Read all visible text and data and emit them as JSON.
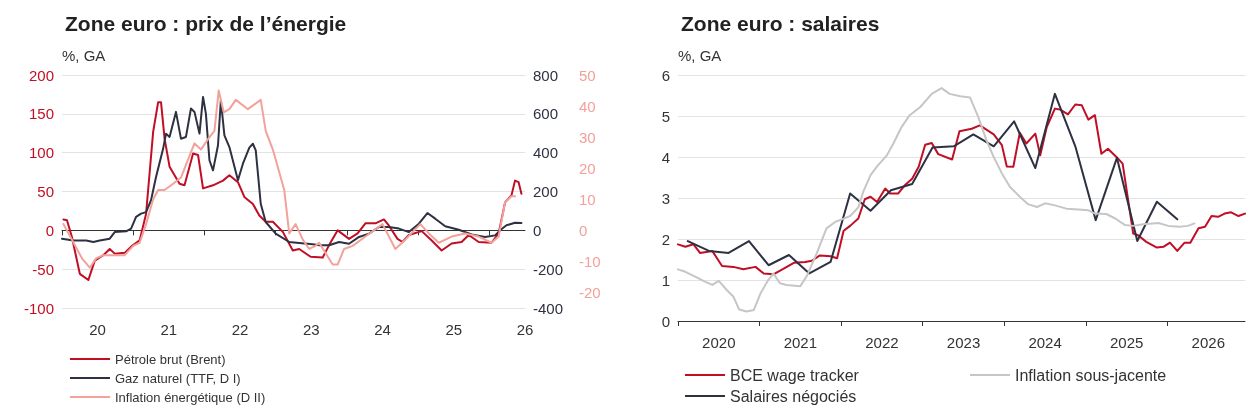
{
  "chart_data": [
    {
      "type": "line",
      "title": "Zone euro : prix de l’énergie",
      "ylabel": "%, GA",
      "legend": "bottom left",
      "grid": "y",
      "xlim": [
        20,
        26.5
      ],
      "xticks": [
        {
          "value": 20,
          "label": null
        },
        {
          "value": 20.5,
          "label": "20"
        },
        {
          "value": 21,
          "label": null
        },
        {
          "value": 21.5,
          "label": "21"
        },
        {
          "value": 22,
          "label": null
        },
        {
          "value": 22.5,
          "label": "22"
        },
        {
          "value": 23,
          "label": null
        },
        {
          "value": 23.5,
          "label": "23"
        },
        {
          "value": 24,
          "label": null
        },
        {
          "value": 24.5,
          "label": "24"
        },
        {
          "value": 25,
          "label": null
        },
        {
          "value": 25.5,
          "label": "25"
        },
        {
          "value": 26,
          "label": null
        },
        {
          "value": 26.5,
          "label": "26"
        }
      ],
      "ylim": [
        -100,
        200
      ],
      "yticks": [
        -100,
        -50,
        0,
        50,
        100,
        150,
        200
      ],
      "y2lim": [
        -400,
        800
      ],
      "y2ticks": [
        -400,
        -200,
        0,
        200,
        400,
        600,
        800
      ],
      "y3lim": [
        -25,
        50
      ],
      "y3ticks": [
        -20,
        -10,
        0,
        10,
        20,
        30,
        40,
        50
      ],
      "series": [
        {
          "name": "Pétrole brut (Brent)",
          "color": "#c00f25",
          "axis": "y",
          "x": [
            20.02,
            20.07,
            20.14,
            20.25,
            20.37,
            20.46,
            20.58,
            20.67,
            20.74,
            20.88,
            20.97,
            21.09,
            21.18,
            21.28,
            21.35,
            21.39,
            21.44,
            21.51,
            21.65,
            21.72,
            21.84,
            21.91,
            21.98,
            22.12,
            22.26,
            22.35,
            22.47,
            22.56,
            22.68,
            22.77,
            22.86,
            22.96,
            23.1,
            23.24,
            23.33,
            23.49,
            23.66,
            23.75,
            23.87,
            24.03,
            24.15,
            24.26,
            24.4,
            24.52,
            24.59,
            24.71,
            24.78,
            24.87,
            25.05,
            25.19,
            25.33,
            25.47,
            25.61,
            25.71,
            25.85,
            26.03,
            26.13,
            26.22,
            26.31,
            26.36,
            26.41,
            26.45
          ],
          "values": [
            14,
            13,
            -9,
            -56,
            -64,
            -39,
            -32,
            -24,
            -30,
            -29,
            -21,
            -13,
            21,
            127,
            165,
            165,
            118,
            82,
            60,
            58,
            99,
            97,
            54,
            58,
            64,
            71,
            62,
            43,
            34,
            19,
            11,
            11,
            -2,
            -26,
            -24,
            -34,
            -35,
            -19,
            0,
            -11,
            -4,
            9,
            9,
            14,
            6,
            -11,
            -15,
            -6,
            -1,
            -13,
            -26,
            -17,
            -15,
            -6,
            -15,
            -16,
            -4,
            36,
            45,
            64,
            62,
            47
          ]
        },
        {
          "name": "Gaz naturel (TTF, D I)",
          "color": "#2d3142",
          "axis": "y2",
          "x": [
            20,
            20.16,
            20.34,
            20.44,
            20.53,
            20.67,
            20.74,
            20.9,
            20.97,
            21.04,
            21.11,
            21.18,
            21.25,
            21.32,
            21.42,
            21.46,
            21.51,
            21.6,
            21.67,
            21.74,
            21.81,
            21.86,
            21.93,
            21.98,
            22.02,
            22.07,
            22.12,
            22.19,
            22.23,
            22.28,
            22.35,
            22.47,
            22.54,
            22.63,
            22.68,
            22.72,
            22.79,
            22.86,
            23,
            23.19,
            23.33,
            23.52,
            23.61,
            23.75,
            23.89,
            24.03,
            24.17,
            24.31,
            24.45,
            24.59,
            24.73,
            24.87,
            25.01,
            25.13,
            25.24,
            25.38,
            25.57,
            25.75,
            25.94,
            26.08,
            26.15,
            26.24,
            26.36,
            26.45
          ],
          "values": [
            -43,
            -52,
            -52,
            -60,
            -52,
            -43,
            -9,
            -5,
            9,
            69,
            86,
            94,
            155,
            275,
            421,
            498,
            481,
            610,
            472,
            481,
            627,
            610,
            498,
            687,
            601,
            361,
            309,
            438,
            670,
            489,
            429,
            258,
            343,
            426,
            446,
            412,
            137,
            43,
            -17,
            -60,
            -65,
            -72,
            -77,
            -77,
            -60,
            -69,
            -34,
            -17,
            17,
            17,
            9,
            -9,
            34,
            89,
            60,
            21,
            3,
            -21,
            -34,
            -26,
            0,
            26,
            39,
            38
          ]
        },
        {
          "name": "Inflation énergétique (D II)",
          "color": "#f2a19b",
          "axis": "y3",
          "x": [
            20.02,
            20.14,
            20.28,
            20.39,
            20.48,
            20.58,
            20.72,
            20.88,
            21,
            21.09,
            21.18,
            21.28,
            21.35,
            21.44,
            21.56,
            21.67,
            21.79,
            21.86,
            21.95,
            22.07,
            22.14,
            22.2,
            22.27,
            22.35,
            22.44,
            22.61,
            22.79,
            22.86,
            22.96,
            23.12,
            23.19,
            23.28,
            23.38,
            23.47,
            23.56,
            23.61,
            23.8,
            23.87,
            23.96,
            24.08,
            24.26,
            24.5,
            24.68,
            24.82,
            25.03,
            25.15,
            25.29,
            25.47,
            25.66,
            25.85,
            26.03,
            26.13,
            26.22,
            26.31,
            26.36
          ],
          "values": [
            2,
            -3,
            -9,
            -12,
            -9,
            -8,
            -8,
            -8,
            -5,
            -4,
            2,
            10,
            13,
            13,
            15,
            17,
            24,
            28,
            26,
            30,
            32,
            45,
            38,
            39,
            42,
            39,
            42,
            32,
            26,
            13,
            -1,
            2,
            -3,
            -6,
            -5,
            -4,
            -11,
            -11,
            -6,
            -5,
            -2,
            2,
            -6,
            -3,
            2,
            -1,
            -4,
            -2,
            -1,
            -2,
            -4,
            -2,
            9,
            11,
            11
          ]
        }
      ]
    },
    {
      "type": "line",
      "title": "Zone euro : salaires",
      "ylabel": "%, GA",
      "legend": "bottom",
      "grid": "y",
      "xlim": [
        2020,
        2026.95
      ],
      "xticks": [
        {
          "value": 2020,
          "label": null
        },
        {
          "value": 2020.5,
          "label": "2020"
        },
        {
          "value": 2021,
          "label": null
        },
        {
          "value": 2021.5,
          "label": "2021"
        },
        {
          "value": 2022,
          "label": null
        },
        {
          "value": 2022.5,
          "label": "2022"
        },
        {
          "value": 2023,
          "label": null
        },
        {
          "value": 2023.5,
          "label": "2023"
        },
        {
          "value": 2024,
          "label": null
        },
        {
          "value": 2024.5,
          "label": "2024"
        },
        {
          "value": 2025,
          "label": null
        },
        {
          "value": 2025.5,
          "label": "2025"
        },
        {
          "value": 2026,
          "label": null
        },
        {
          "value": 2026.5,
          "label": "2026"
        }
      ],
      "ylim": [
        0,
        6
      ],
      "yticks": [
        0,
        1,
        2,
        3,
        4,
        5,
        6
      ],
      "series": [
        {
          "name": "BCE wage tracker",
          "color": "#c00f25",
          "x": [
            2020,
            2020.09,
            2020.19,
            2020.27,
            2020.42,
            2020.54,
            2020.68,
            2020.8,
            2020.95,
            2021.05,
            2021.17,
            2021.29,
            2021.42,
            2021.56,
            2021.64,
            2021.74,
            2021.87,
            2021.95,
            2022.03,
            2022.11,
            2022.21,
            2022.29,
            2022.36,
            2022.44,
            2022.54,
            2022.6,
            2022.7,
            2022.78,
            2022.87,
            2022.95,
            2023.03,
            2023.11,
            2023.19,
            2023.36,
            2023.45,
            2023.6,
            2023.7,
            2023.87,
            2023.97,
            2024.03,
            2024.11,
            2024.19,
            2024.27,
            2024.38,
            2024.44,
            2024.52,
            2024.62,
            2024.68,
            2024.78,
            2024.87,
            2024.95,
            2025.03,
            2025.11,
            2025.19,
            2025.27,
            2025.38,
            2025.45,
            2025.58,
            2025.64,
            2025.74,
            2025.87,
            2025.95,
            2026.03,
            2026.12,
            2026.21,
            2026.28,
            2026.38,
            2026.46,
            2026.54,
            2026.62,
            2026.7,
            2026.78,
            2026.87,
            2026.95
          ],
          "values": [
            1.87,
            1.81,
            1.87,
            1.66,
            1.71,
            1.34,
            1.32,
            1.26,
            1.32,
            1.16,
            1.14,
            1.27,
            1.42,
            1.44,
            1.47,
            1.6,
            1.58,
            1.53,
            2.2,
            2.32,
            2.5,
            2.97,
            3.03,
            2.9,
            3.23,
            3.11,
            3.11,
            3.31,
            3.47,
            3.76,
            4.3,
            4.34,
            4.07,
            3.94,
            4.63,
            4.69,
            4.77,
            4.55,
            4.29,
            3.77,
            3.76,
            4.59,
            4.33,
            4.57,
            4.04,
            4.73,
            5.18,
            5.16,
            5.04,
            5.28,
            5.26,
            4.91,
            5.02,
            4.08,
            4.2,
            3.99,
            3.84,
            2.13,
            2.09,
            1.93,
            1.79,
            1.81,
            1.91,
            1.71,
            1.91,
            1.91,
            2.26,
            2.3,
            2.56,
            2.54,
            2.62,
            2.65,
            2.56,
            2.62
          ]
        },
        {
          "name": "Salaires négociés",
          "color": "#2d3142",
          "x": [
            2020.12,
            2020.38,
            2020.62,
            2020.87,
            2021.11,
            2021.36,
            2021.61,
            2021.87,
            2022.11,
            2022.36,
            2022.61,
            2022.87,
            2023.12,
            2023.38,
            2023.62,
            2023.87,
            2024.12,
            2024.38,
            2024.62,
            2024.87,
            2025.12,
            2025.38,
            2025.63,
            2025.87,
            2026.12
          ],
          "values": [
            1.95,
            1.71,
            1.66,
            1.95,
            1.36,
            1.61,
            1.16,
            1.44,
            3.11,
            2.69,
            3.19,
            3.34,
            4.23,
            4.26,
            4.55,
            4.26,
            4.87,
            3.73,
            5.54,
            4.26,
            2.46,
            3.98,
            1.95,
            2.91,
            2.48
          ]
        },
        {
          "name": "Inflation sous-jacente",
          "color": "#c6c6c6",
          "x": [
            2020,
            2020.09,
            2020.21,
            2020.33,
            2020.42,
            2020.5,
            2020.6,
            2020.68,
            2020.75,
            2020.84,
            2020.93,
            2021.01,
            2021.11,
            2021.17,
            2021.25,
            2021.33,
            2021.5,
            2021.58,
            2021.7,
            2021.82,
            2021.93,
            2022.01,
            2022.11,
            2022.21,
            2022.27,
            2022.36,
            2022.44,
            2022.56,
            2022.64,
            2022.74,
            2022.84,
            2022.97,
            2023.11,
            2023.23,
            2023.33,
            2023.46,
            2023.58,
            2023.68,
            2023.78,
            2023.87,
            2023.97,
            2024.07,
            2024.19,
            2024.29,
            2024.4,
            2024.5,
            2024.62,
            2024.76,
            2024.91,
            2025.03,
            2025.11,
            2025.25,
            2025.36,
            2025.48,
            2025.58,
            2025.7,
            2025.89,
            2026.01,
            2026.15,
            2026.25,
            2026.33
          ],
          "values": [
            1.26,
            1.2,
            1.08,
            0.96,
            0.88,
            0.98,
            0.75,
            0.59,
            0.28,
            0.23,
            0.27,
            0.67,
            1.01,
            1.16,
            0.92,
            0.88,
            0.85,
            1.1,
            1.65,
            2.26,
            2.42,
            2.48,
            2.56,
            2.77,
            3.15,
            3.56,
            3.77,
            4.04,
            4.33,
            4.73,
            5.02,
            5.22,
            5.54,
            5.68,
            5.54,
            5.48,
            5.45,
            4.98,
            4.41,
            4,
            3.6,
            3.27,
            3.03,
            2.85,
            2.78,
            2.87,
            2.82,
            2.74,
            2.72,
            2.7,
            2.62,
            2.61,
            2.5,
            2.34,
            2.32,
            2.36,
            2.39,
            2.32,
            2.3,
            2.32,
            2.38
          ]
        }
      ]
    }
  ]
}
